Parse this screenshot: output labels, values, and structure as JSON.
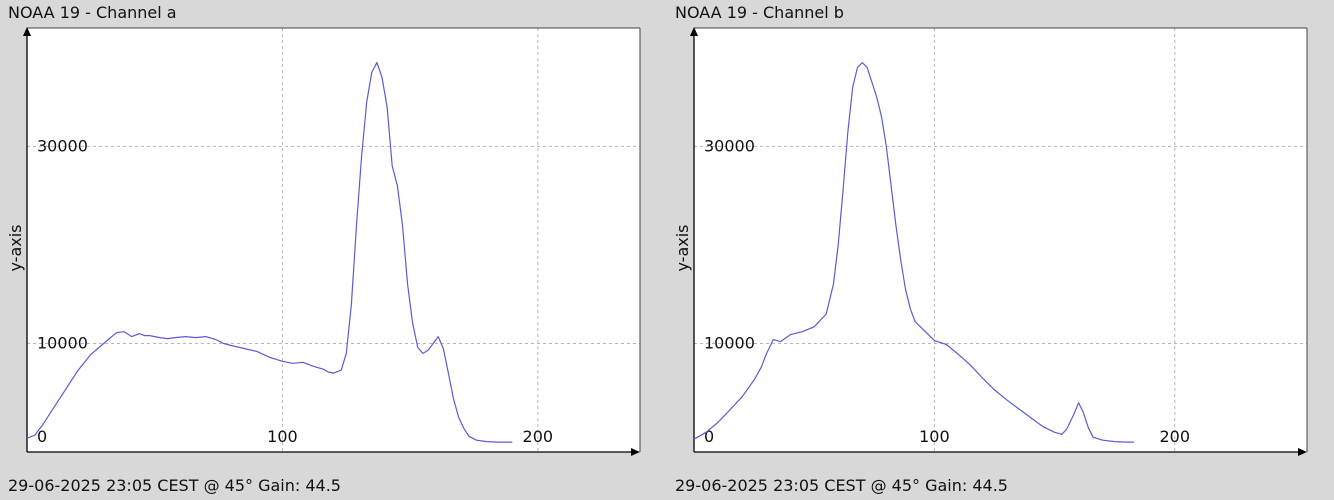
{
  "chart_data": [
    {
      "type": "line",
      "title": "NOAA 19 - Channel a",
      "footer": "29-06-2025 23:05 CEST @ 45° Gain: 44.5",
      "ylabel": "y-axis",
      "xlabel": "",
      "xlim": [
        0,
        240
      ],
      "ylim": [
        -1000,
        42000
      ],
      "x_ticks": [
        0,
        100,
        200
      ],
      "y_ticks": [
        10000,
        30000
      ],
      "grid": true,
      "line_color": "#5b5bd6",
      "series": [
        {
          "x": [
            0,
            3,
            6,
            10,
            15,
            20,
            25,
            30,
            35,
            38,
            41,
            44,
            46,
            48,
            52,
            55,
            58,
            62,
            66,
            70,
            74,
            77,
            80,
            85,
            90,
            95,
            100,
            104,
            108,
            112,
            116,
            118,
            120,
            123,
            125,
            127,
            129,
            131,
            133,
            135,
            137,
            139,
            141,
            143,
            145,
            147,
            149,
            151,
            153,
            155,
            157,
            159,
            161,
            163,
            165,
            167,
            169,
            171,
            173,
            176,
            180,
            184,
            188,
            190
          ],
          "y": [
            400,
            700,
            1700,
            3300,
            5300,
            7300,
            8900,
            10000,
            11100,
            11200,
            10700,
            11000,
            10800,
            10800,
            10600,
            10500,
            10600,
            10700,
            10600,
            10700,
            10400,
            10000,
            9800,
            9500,
            9200,
            8600,
            8200,
            8000,
            8100,
            7700,
            7400,
            7100,
            7000,
            7300,
            9000,
            14000,
            22000,
            29000,
            34500,
            37500,
            38500,
            37000,
            34000,
            28000,
            26000,
            22000,
            16000,
            12000,
            9600,
            9000,
            9300,
            10000,
            10700,
            9500,
            7000,
            4400,
            2500,
            1400,
            600,
            200,
            50,
            0,
            0,
            0
          ]
        }
      ]
    },
    {
      "type": "line",
      "title": "NOAA 19 - Channel b",
      "footer": "29-06-2025 23:05 CEST @ 45° Gain: 44.5",
      "ylabel": "y-axis",
      "xlabel": "",
      "xlim": [
        0,
        255
      ],
      "ylim": [
        -1000,
        42000
      ],
      "x_ticks": [
        0,
        100,
        200
      ],
      "y_ticks": [
        10000,
        30000
      ],
      "grid": true,
      "line_color": "#5b5bd6",
      "series": [
        {
          "x": [
            0,
            5,
            10,
            15,
            20,
            25,
            28,
            30,
            33,
            36,
            40,
            45,
            50,
            55,
            58,
            60,
            62,
            64,
            66,
            68,
            70,
            72,
            74,
            76,
            78,
            80,
            82,
            84,
            86,
            88,
            90,
            92,
            95,
            100,
            105,
            110,
            115,
            120,
            125,
            130,
            135,
            140,
            145,
            150,
            153,
            155,
            158,
            160,
            162,
            164,
            166,
            170,
            175,
            180,
            183
          ],
          "y": [
            300,
            1000,
            2000,
            3300,
            4600,
            6300,
            7600,
            8900,
            10400,
            10200,
            10900,
            11200,
            11700,
            13000,
            16000,
            20000,
            25500,
            31500,
            36000,
            38000,
            38500,
            38000,
            36500,
            35000,
            33000,
            30000,
            26000,
            22000,
            18500,
            15500,
            13500,
            12200,
            11500,
            10300,
            9900,
            8900,
            7800,
            6500,
            5300,
            4300,
            3400,
            2500,
            1600,
            1000,
            800,
            1300,
            2800,
            4000,
            3000,
            1500,
            500,
            200,
            50,
            0,
            0
          ]
        }
      ]
    }
  ]
}
